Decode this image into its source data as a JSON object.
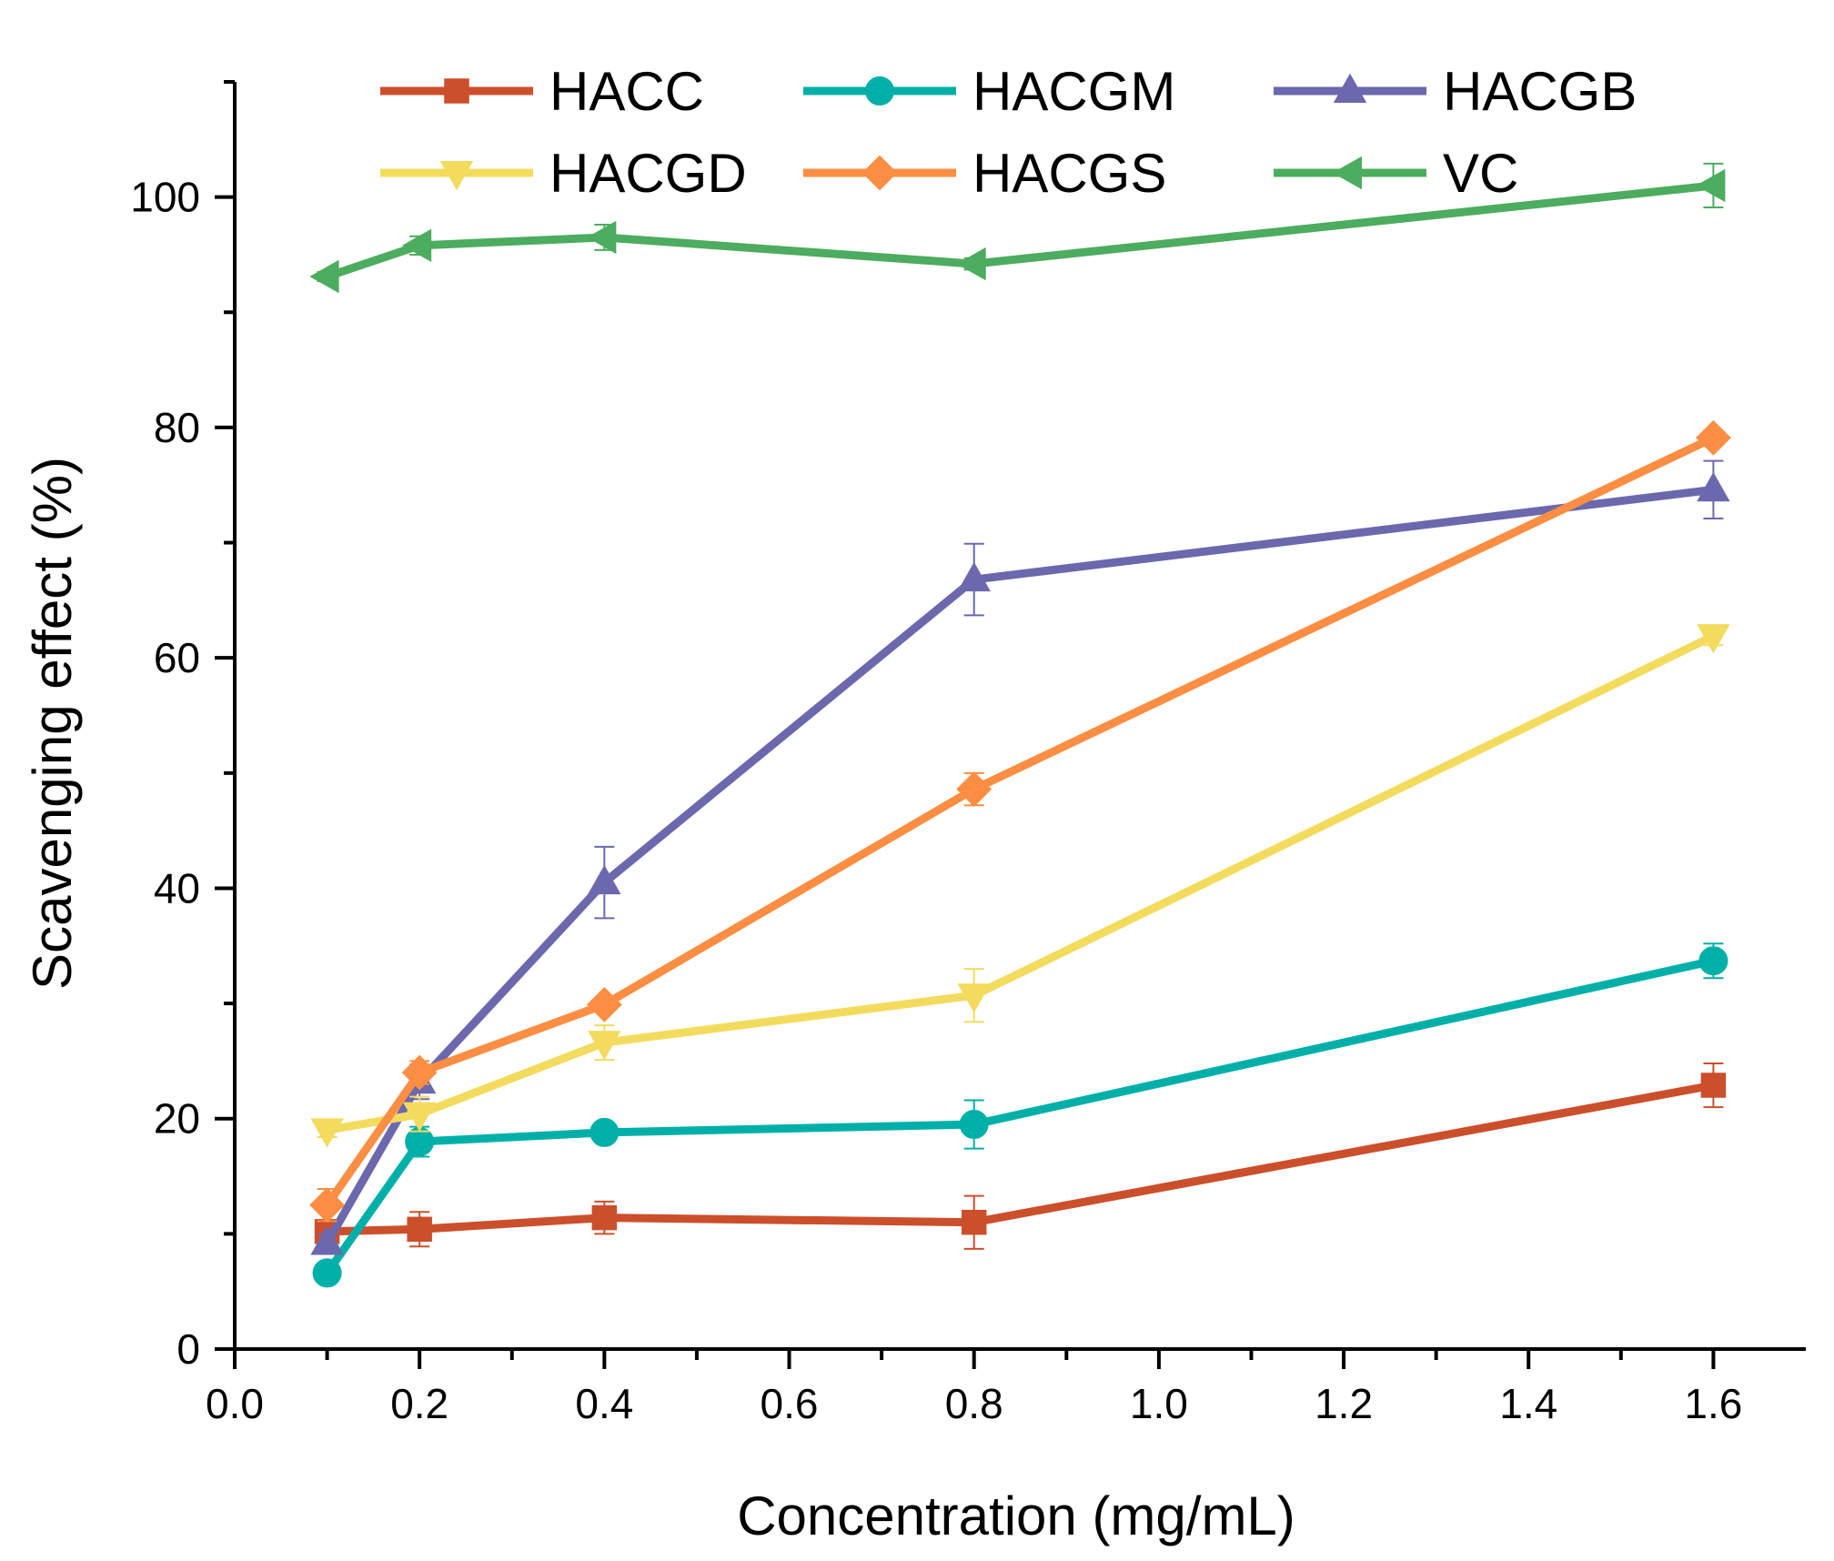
{
  "chart_data": {
    "type": "line",
    "title": "",
    "xlabel": "Concentration (mg/mL)",
    "ylabel": "Scavenging effect (%)",
    "xlim": [
      0.0,
      1.7
    ],
    "ylim": [
      0,
      110
    ],
    "xticks": [
      0.0,
      0.2,
      0.4,
      0.6,
      0.8,
      1.0,
      1.2,
      1.4,
      1.6
    ],
    "xtick_labels": [
      "0.0",
      "0.2",
      "0.4",
      "0.6",
      "0.8",
      "1.0",
      "1.2",
      "1.4",
      "1.6"
    ],
    "yticks": [
      0,
      20,
      40,
      60,
      80,
      100
    ],
    "ytick_labels": [
      "0",
      "20",
      "40",
      "60",
      "80",
      "100"
    ],
    "grid": false,
    "legend_position": "top",
    "x": [
      0.1,
      0.2,
      0.4,
      0.8,
      1.6
    ],
    "series": [
      {
        "name": "HACC",
        "color": "#cc4f2b",
        "marker": "square",
        "values": [
          10.2,
          10.4,
          11.4,
          11.0,
          22.9
        ],
        "errors": [
          0.8,
          1.5,
          1.4,
          2.3,
          1.9
        ]
      },
      {
        "name": "HACGM",
        "color": "#00b0a8",
        "marker": "circle",
        "values": [
          6.6,
          18.0,
          18.8,
          19.5,
          33.7
        ],
        "errors": [
          0.5,
          1.3,
          0.6,
          2.1,
          1.5
        ]
      },
      {
        "name": "HACGB",
        "color": "#6b68ad",
        "marker": "triangle-up",
        "values": [
          9.2,
          23.2,
          40.5,
          66.8,
          74.6
        ],
        "errors": [
          0.8,
          1.5,
          3.1,
          3.1,
          2.5
        ]
      },
      {
        "name": "HACGD",
        "color": "#f3db5e",
        "marker": "triangle-down",
        "values": [
          19.0,
          20.4,
          26.6,
          30.7,
          61.9
        ],
        "errors": [
          0.6,
          1.5,
          1.5,
          2.3,
          0.8
        ]
      },
      {
        "name": "HACGS",
        "color": "#fb8e43",
        "marker": "diamond",
        "values": [
          12.5,
          24.0,
          29.9,
          48.6,
          79.1
        ],
        "errors": [
          1.4,
          1.0,
          0.6,
          1.4,
          0.4
        ]
      },
      {
        "name": "VC",
        "color": "#4cac5f",
        "marker": "triangle-left",
        "values": [
          93.1,
          95.8,
          96.5,
          94.2,
          101.0
        ],
        "errors": [
          0.4,
          0.8,
          1.1,
          0.5,
          1.9
        ]
      }
    ]
  }
}
